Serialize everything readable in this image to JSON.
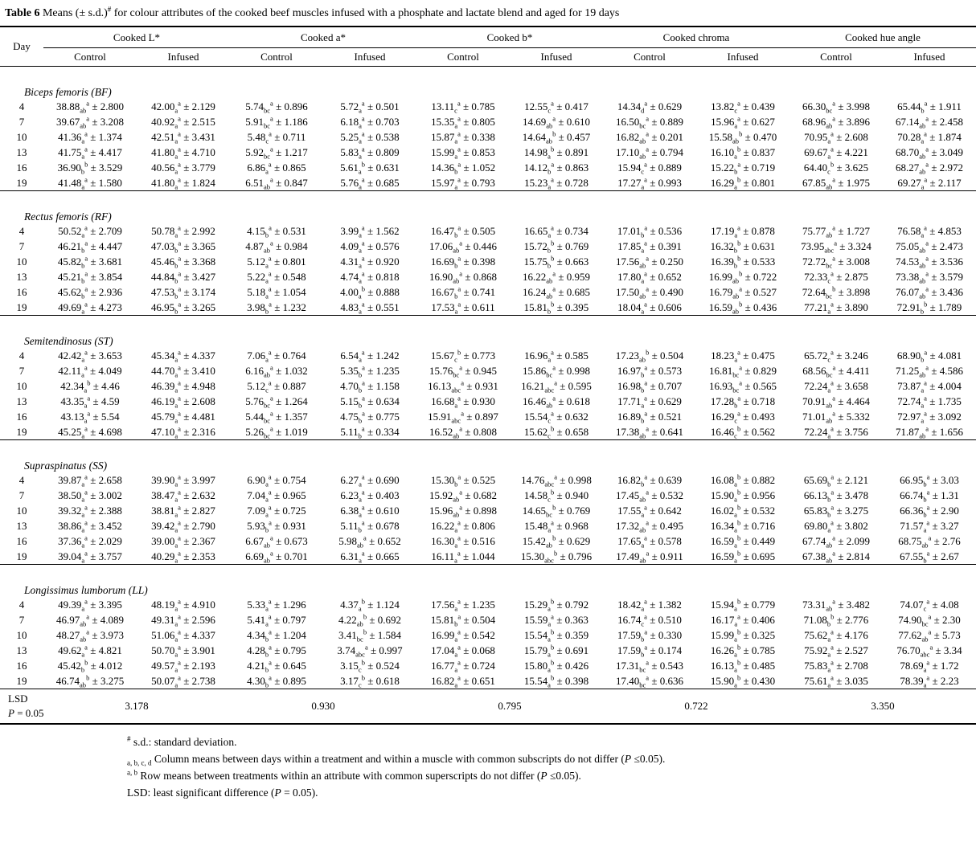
{
  "title": {
    "bold": "Table 6",
    "text1": " Means (± s.d.)",
    "marker": "#",
    "text2": " for colour attributes of the cooked beef muscles infused with a phosphate and lactate blend and aged for 19 days"
  },
  "header": {
    "day": "Day",
    "groups": [
      "Cooked L*",
      "Cooked a*",
      "Cooked b*",
      "Cooked chroma",
      "Cooked hue angle"
    ],
    "treatments": [
      "Control",
      "Infused"
    ]
  },
  "sections": [
    {
      "name": "Biceps femoris (BF)",
      "rows": [
        {
          "day": "4",
          "cells": [
            "38.88|ab|a|2.800",
            "42.00|a|a|2.129",
            "5.74|bc|a|0.896",
            "5.72|a|a|0.501",
            "13.11|c|a|0.785",
            "12.55|c|a|0.417",
            "14.34|d|a|0.629",
            "13.82|c|a|0.439",
            "66.30|bc|a|3.998",
            "65.44|b|a|1.911"
          ]
        },
        {
          "day": "7",
          "cells": [
            "39.67|ab|a|3.208",
            "40.92|a|a|2.515",
            "5.91|bc|a|1.186",
            "6.18|a|a|0.703",
            "15.35|a|a|0.805",
            "14.69|ab|a|0.610",
            "16.50|bc|a|0.889",
            "15.96|a|a|0.627",
            "68.96|ab|a|3.896",
            "67.14|ab|a|2.458"
          ]
        },
        {
          "day": "10",
          "cells": [
            "41.36|a|a|1.374",
            "42.51|a|a|3.431",
            "5.48|c|a|0.711",
            "5.25|a|a|0.538",
            "15.87|a|a|0.338",
            "14.64|ab|b|0.457",
            "16.82|ab|a|0.201",
            "15.58|ab|b|0.470",
            "70.95|a|a|2.608",
            "70.28|a|a|1.874"
          ]
        },
        {
          "day": "13",
          "cells": [
            "41.75|a|a|4.417",
            "41.80|a|a|4.710",
            "5.92|bc|a|1.217",
            "5.83|a|a|0.809",
            "15.99|a|a|0.853",
            "14.98|a|b|0.891",
            "17.10|ab|a|0.794",
            "16.10|a|b|0.837",
            "69.67|a|a|4.221",
            "68.70|ab|a|3.049"
          ]
        },
        {
          "day": "16",
          "cells": [
            "36.90|b|b|3.529",
            "40.56|a|a|3.779",
            "6.86|a|a|0.865",
            "5.61|a|b|0.631",
            "14.36|b|a|1.052",
            "14.12|b|a|0.863",
            "15.94|c|a|0.889",
            "15.22|b|a|0.719",
            "64.40|c|b|3.625",
            "68.27|ab|a|2.972"
          ]
        },
        {
          "day": "19",
          "cells": [
            "41.48|a|a|1.580",
            "41.80|a|a|1.824",
            "6.51|ab|a|0.847",
            "5.76|a|a|0.685",
            "15.97|a|a|0.793",
            "15.23|a|a|0.728",
            "17.27|a|a|0.993",
            "16.29|a|b|0.801",
            "67.85|ab|a|1.975",
            "69.27|a|a|2.117"
          ]
        }
      ]
    },
    {
      "name": "Rectus femoris (RF)",
      "rows": [
        {
          "day": "4",
          "cells": [
            "50.52|a|a|2.709",
            "50.78|a|a|2.992",
            "4.15|b|a|0.531",
            "3.99|a|a|1.562",
            "16.47|b|a|0.505",
            "16.65|a|a|0.734",
            "17.01|b|a|0.536",
            "17.19|a|a|0.878",
            "75.77|ab|a|1.727",
            "76.58|a|a|4.853"
          ]
        },
        {
          "day": "7",
          "cells": [
            "46.21|b|a|4.447",
            "47.03|b|a|3.365",
            "4.87|ab|a|0.984",
            "4.09|a|a|0.576",
            "17.06|ab|a|0.446",
            "15.72|b|b|0.769",
            "17.85|a|a|0.391",
            "16.32|b|b|0.631",
            "73.95|abc|a|3.324",
            "75.05|ab|a|2.473"
          ]
        },
        {
          "day": "10",
          "cells": [
            "45.82|b|a|3.681",
            "45.46|b|a|3.368",
            "5.12|a|a|0.801",
            "4.31|a|a|0.920",
            "16.69|b|a|0.398",
            "15.75|b|b|0.663",
            "17.56|ab|a|0.250",
            "16.39|b|b|0.533",
            "72.72|bc|a|3.008",
            "74.53|ab|a|3.536"
          ]
        },
        {
          "day": "13",
          "cells": [
            "45.21|b|a|3.854",
            "44.84|b|a|3.427",
            "5.22|a|a|0.548",
            "4.74|a|a|0.818",
            "16.90|ab|a|0.868",
            "16.22|ab|a|0.959",
            "17.80|a|a|0.652",
            "16.99|ab|b|0.722",
            "72.33|c|a|2.875",
            "73.38|ab|a|3.579"
          ]
        },
        {
          "day": "16",
          "cells": [
            "45.62|b|a|2.936",
            "47.53|b|a|3.174",
            "5.18|a|a|1.054",
            "4.00|a|b|0.888",
            "16.67|b|a|0.741",
            "16.24|ab|a|0.685",
            "17.50|ab|a|0.490",
            "16.79|ab|a|0.527",
            "72.64|bc|b|3.898",
            "76.07|ab|a|3.436"
          ]
        },
        {
          "day": "19",
          "cells": [
            "49.69|a|a|4.273",
            "46.95|b|a|3.265",
            "3.98|b|a|1.232",
            "4.83|a|a|0.551",
            "17.53|a|a|0.611",
            "15.81|b|b|0.395",
            "18.04|a|a|0.606",
            "16.59|ab|b|0.436",
            "77.21|a|a|3.890",
            "72.91|b|b|1.789"
          ]
        }
      ]
    },
    {
      "name": "Semitendinosus (ST)",
      "rows": [
        {
          "day": "4",
          "cells": [
            "42.42|a|a|3.653",
            "45.34|a|a|4.337",
            "7.06|a|a|0.764",
            "6.54|a|a|1.242",
            "15.67|c|b|0.773",
            "16.96|a|a|0.585",
            "17.23|ab|b|0.504",
            "18.23|a|a|0.475",
            "65.72|c|a|3.246",
            "68.90|b|a|4.081"
          ]
        },
        {
          "day": "7",
          "cells": [
            "42.11|a|a|4.049",
            "44.70|a|a|3.410",
            "6.16|ab|a|1.032",
            "5.35|b|a|1.235",
            "15.76|bc|a|0.945",
            "15.86|bc|a|0.998",
            "16.97|b|a|0.573",
            "16.81|bc|a|0.829",
            "68.56|bc|a|4.411",
            "71.25|ab|a|4.586"
          ]
        },
        {
          "day": "10",
          "cells": [
            "42.34|a|b|4.46",
            "46.39|a|a|4.948",
            "5.12|c|a|0.887",
            "4.70|b|a|1.158",
            "16.13|abc|a|0.931",
            "16.21|abc|a|0.595",
            "16.98|b|a|0.707",
            "16.93|bc|a|0.565",
            "72.24|a|a|3.658",
            "73.87|a|a|4.004"
          ]
        },
        {
          "day": "13",
          "cells": [
            "43.35|a|a|4.59",
            "46.19|a|a|2.608",
            "5.76|bc|a|1.264",
            "5.15|b|a|0.634",
            "16.68|a|a|0.930",
            "16.46|ab|a|0.618",
            "17.71|a|a|0.629",
            "17.28|b|a|0.718",
            "70.91|ab|a|4.464",
            "72.74|a|a|1.735"
          ]
        },
        {
          "day": "16",
          "cells": [
            "43.13|a|a|5.54",
            "45.79|a|a|4.481",
            "5.44|bc|a|1.357",
            "4.75|b|a|0.775",
            "15.91|abc|a|0.897",
            "15.54|c|a|0.632",
            "16.89|b|a|0.521",
            "16.29|c|a|0.493",
            "71.01|ab|a|5.332",
            "72.97|a|a|3.092"
          ]
        },
        {
          "day": "19",
          "cells": [
            "45.25|a|a|4.698",
            "47.10|a|a|2.316",
            "5.26|bc|a|1.019",
            "5.11|b|a|0.334",
            "16.52|ab|a|0.808",
            "15.62|c|b|0.658",
            "17.38|ab|a|0.641",
            "16.46|c|b|0.562",
            "72.24|a|a|3.756",
            "71.87|ab|a|1.656"
          ]
        }
      ]
    },
    {
      "name": "Supraspinatus (SS)",
      "rows": [
        {
          "day": "4",
          "cells": [
            "39.87|a|a|2.658",
            "39.90|a|a|3.997",
            "6.90|a|a|0.754",
            "6.27|a|a|0.690",
            "15.30|b|a|0.525",
            "14.76|abc|a|0.998",
            "16.82|b|a|0.639",
            "16.08|a|b|0.882",
            "65.69|b|a|2.121",
            "66.95|b|a|3.03"
          ]
        },
        {
          "day": "7",
          "cells": [
            "38.50|a|a|3.002",
            "38.47|a|a|2.632",
            "7.04|a|a|0.965",
            "6.23|a|a|0.403",
            "15.92|ab|a|0.682",
            "14.58|c|b|0.940",
            "17.45|ab|a|0.532",
            "15.90|a|b|0.956",
            "66.13|b|a|3.478",
            "66.74|b|a|1.31"
          ]
        },
        {
          "day": "10",
          "cells": [
            "39.32|a|a|2.388",
            "38.81|a|a|2.827",
            "7.09|a|a|0.725",
            "6.38|a|a|0.610",
            "15.96|ab|a|0.898",
            "14.65|bc|b|0.769",
            "17.55|a|a|0.642",
            "16.02|a|b|0.532",
            "65.83|b|a|3.275",
            "66.36|b|a|2.90"
          ]
        },
        {
          "day": "13",
          "cells": [
            "38.86|a|a|3.452",
            "39.42|a|a|2.790",
            "5.93|b|a|0.931",
            "5.11|b|a|0.678",
            "16.22|a|a|0.806",
            "15.48|a|a|0.968",
            "17.32|ab|a|0.495",
            "16.34|a|b|0.716",
            "69.80|a|a|3.802",
            "71.57|a|a|3.27"
          ]
        },
        {
          "day": "16",
          "cells": [
            "37.36|a|a|2.029",
            "39.00|a|a|2.367",
            "6.67|ab|a|0.673",
            "5.98|ab|a|0.652",
            "16.30|a|a|0.516",
            "15.42|ab|b|0.629",
            "17.65|a|a|0.578",
            "16.59|a|b|0.449",
            "67.74|ab|a|2.099",
            "68.75|ab|a|2.76"
          ]
        },
        {
          "day": "19",
          "cells": [
            "39.04|a|a|3.757",
            "40.29|a|a|2.353",
            "6.69|ab|a|0.701",
            "6.31|a|a|0.665",
            "16.11|a|a|1.044",
            "15.30|abc|b|0.796",
            "17.49|ab|a|0.911",
            "16.59|a|b|0.695",
            "67.38|ab|a|2.814",
            "67.55|b|a|2.67"
          ]
        }
      ]
    },
    {
      "name": "Longissimus lumborum (LL)",
      "rows": [
        {
          "day": "4",
          "cells": [
            "49.39|a|a|3.395",
            "48.19|a|a|4.910",
            "5.33|a|a|1.296",
            "4.37|a|b|1.124",
            "17.56|a|a|1.235",
            "15.29|a|b|0.792",
            "18.42|a|a|1.382",
            "15.94|a|b|0.779",
            "73.31|ab|a|3.482",
            "74.07|c|a|4.08"
          ]
        },
        {
          "day": "7",
          "cells": [
            "46.97|ab|a|4.089",
            "49.31|a|a|2.596",
            "5.41|a|a|0.797",
            "4.22|ab|b|0.692",
            "15.81|b|a|0.504",
            "15.59|a|a|0.363",
            "16.74|c|a|0.510",
            "16.17|a|a|0.406",
            "71.08|b|b|2.776",
            "74.90|bc|a|2.30"
          ]
        },
        {
          "day": "10",
          "cells": [
            "48.27|ab|a|3.973",
            "51.06|a|a|4.337",
            "4.34|b|a|1.204",
            "3.41|bc|b|1.584",
            "16.99|a|a|0.542",
            "15.54|a|b|0.359",
            "17.59|b|a|0.330",
            "15.99|a|b|0.325",
            "75.62|a|a|4.176",
            "77.62|ab|a|5.73"
          ]
        },
        {
          "day": "13",
          "cells": [
            "49.62|a|a|4.821",
            "50.70|a|a|3.901",
            "4.28|b|a|0.795",
            "3.74|abc|a|0.997",
            "17.04|a|a|0.068",
            "15.79|a|b|0.691",
            "17.59|b|a|0.174",
            "16.26|a|b|0.785",
            "75.92|a|a|2.527",
            "76.70|abc|a|3.34"
          ]
        },
        {
          "day": "16",
          "cells": [
            "45.42|b|b|4.012",
            "49.57|a|a|2.193",
            "4.21|b|a|0.645",
            "3.15|c|b|0.524",
            "16.77|a|a|0.724",
            "15.80|a|b|0.426",
            "17.31|bc|a|0.543",
            "16.13|a|b|0.485",
            "75.83|a|a|2.708",
            "78.69|a|a|1.72"
          ]
        },
        {
          "day": "19",
          "cells": [
            "46.74|ab|b|3.275",
            "50.07|a|a|2.738",
            "4.30|b|a|0.895",
            "3.17|c|b|0.618",
            "16.82|a|a|0.651",
            "15.54|a|b|0.398",
            "17.40|bc|a|0.636",
            "15.90|a|b|0.430",
            "75.61|a|a|3.035",
            "78.39|a|a|2.23"
          ]
        }
      ]
    }
  ],
  "lsd": {
    "label": "LSD",
    "p": "P = 0.05",
    "values": [
      "3.178",
      "0.930",
      "0.795",
      "0.722",
      "3.350"
    ]
  },
  "footnotes": [
    {
      "marker": "#",
      "pos": "sup",
      "text": "s.d.: standard deviation."
    },
    {
      "marker": "a, b, c, d",
      "pos": "sub",
      "text": "Column means between days within a treatment and within a muscle with common subscripts do not differ (P ≤0.05)."
    },
    {
      "marker": "a, b",
      "pos": "sup",
      "text": "Row means between treatments within an attribute with common superscripts do not differ (P ≤0.05)."
    },
    {
      "marker": "",
      "pos": "",
      "text": "LSD: least significant difference (P = 0.05)."
    }
  ]
}
